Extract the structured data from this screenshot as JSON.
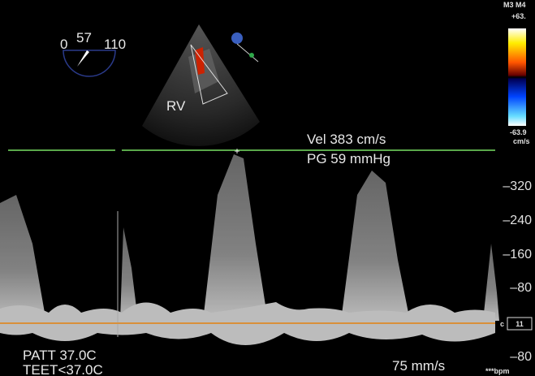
{
  "angle": {
    "labels": [
      "0",
      "57",
      "110"
    ]
  },
  "image_label": "RV",
  "measurements": [
    "Vel 383 cm/s",
    "PG 59 mmHg"
  ],
  "scale": {
    "header": "M3 M4",
    "max": "+63.",
    "min": "-63.9",
    "unit": "cm/s",
    "ticks": [
      "–320",
      "–240",
      "–160",
      "–80"
    ],
    "baseline": "c",
    "gain": "11",
    "bottom": "–80"
  },
  "footer": {
    "temps": [
      "PATT 37.0C",
      "TEET<37.0C"
    ],
    "sweep": "75 mm/s",
    "heart_rate": "***bpm"
  }
}
